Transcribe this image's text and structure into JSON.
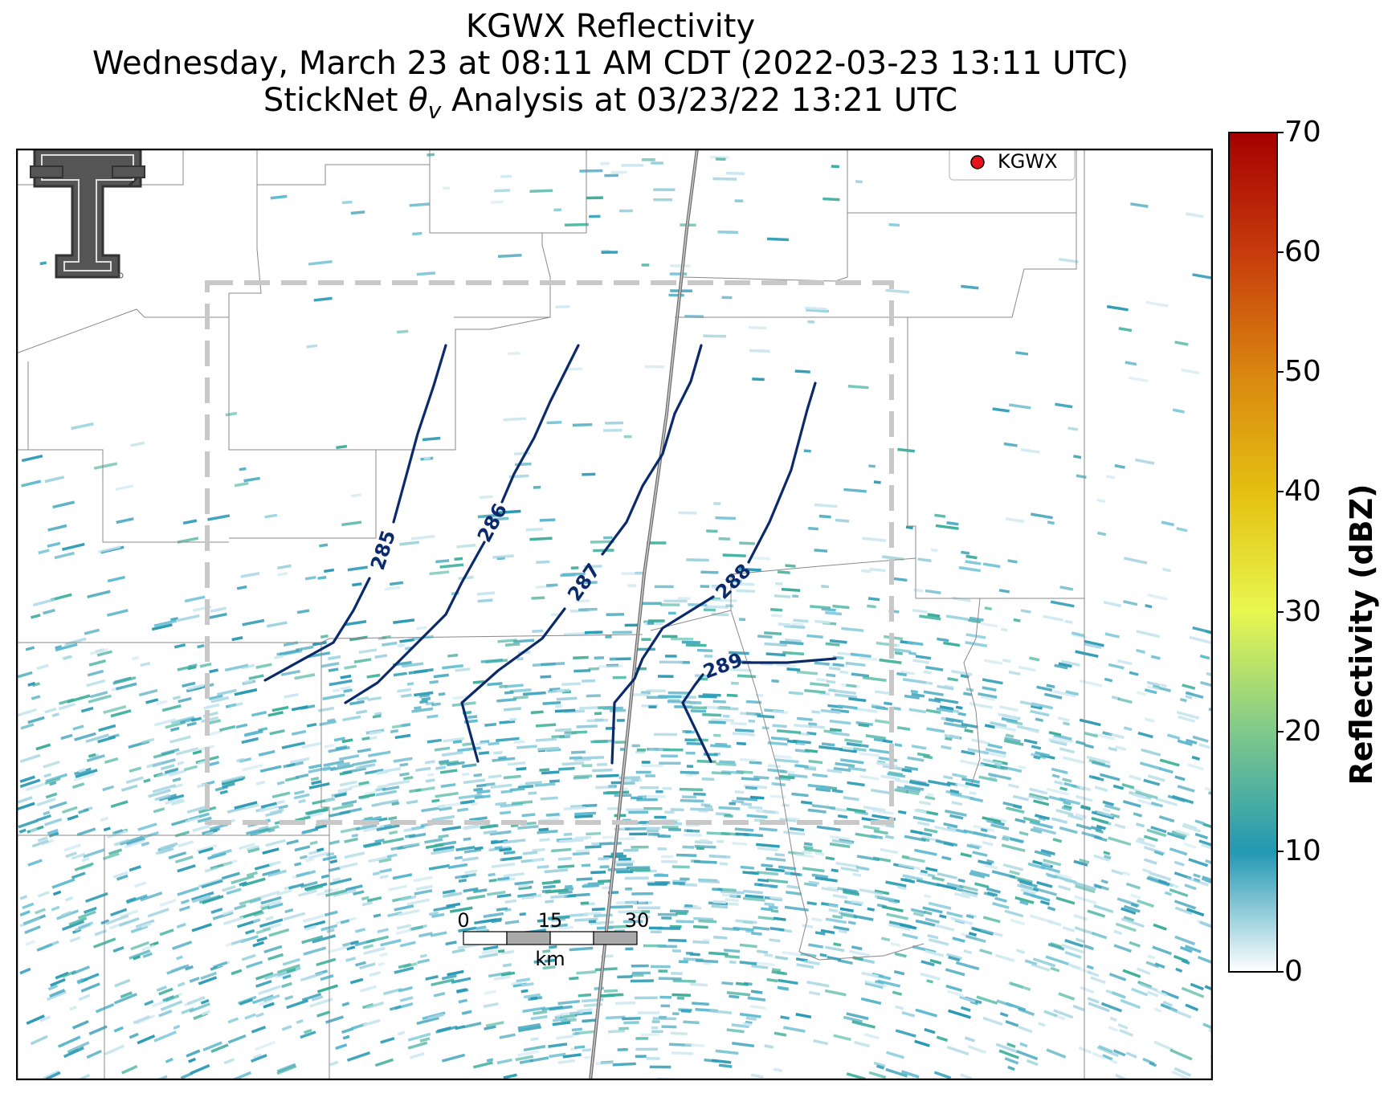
{
  "title": {
    "line1": "KGWX Reflectivity",
    "line2": "Wednesday, March 23 at 08:11 AM CDT (2022-03-23 13:11 UTC)",
    "line3_prefix": "StickNet ",
    "line3_symbol": "θ",
    "line3_sub": "v",
    "line3_suffix": " Analysis at 03/23/22 13:21 UTC"
  },
  "legend": {
    "marker_color": "#e8141b",
    "label": "KGWX"
  },
  "contours": {
    "color": "#0b2a6b",
    "labels": [
      "285",
      "286",
      "287",
      "288",
      "289"
    ]
  },
  "scale_bar": {
    "ticks": [
      "0",
      "15",
      "30"
    ],
    "unit": "km"
  },
  "colorbar": {
    "label": "Reflectivity (dBZ)",
    "ticks": [
      "0",
      "10",
      "20",
      "30",
      "40",
      "50",
      "60",
      "70"
    ],
    "min": 0,
    "max": 70,
    "colors": [
      "#ffffff",
      "#2298b3",
      "#7fc98a",
      "#e8f74f",
      "#e4c012",
      "#d9860f",
      "#c73b0c",
      "#a50000"
    ]
  },
  "logo": {
    "name": "texas-tech-double-t-logo"
  },
  "colors": {
    "analysis_box": "#c8c8c8",
    "county_lines": "#888888",
    "echo_primary": "#2a9ab4",
    "echo_secondary": "#3cae9a"
  }
}
